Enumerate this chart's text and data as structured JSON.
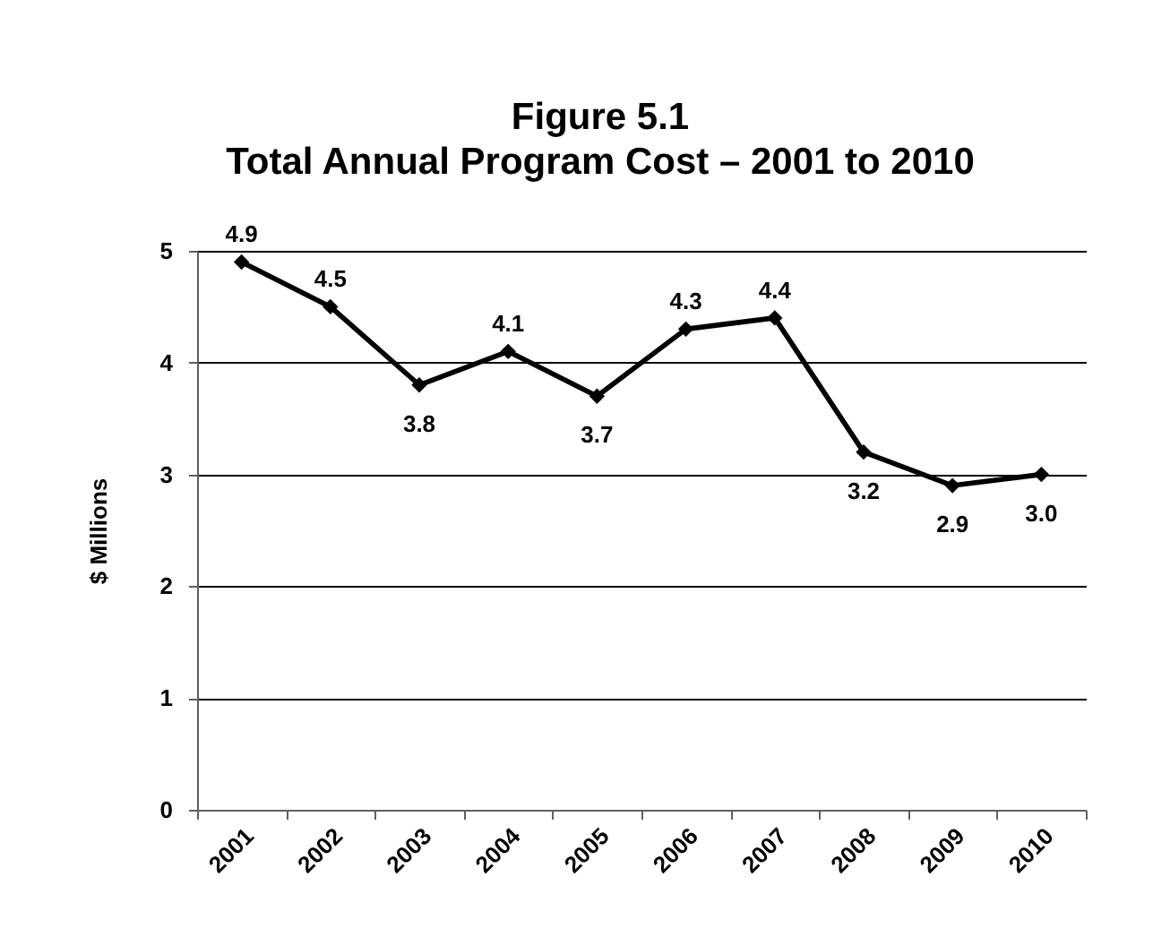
{
  "chart_data": {
    "type": "line",
    "title": "Figure 5.1",
    "subtitle": "Total Annual Program Cost – 2001 to 2010",
    "ylabel": "$ Millions",
    "categories": [
      "2001",
      "2002",
      "2003",
      "2004",
      "2005",
      "2006",
      "2007",
      "2008",
      "2009",
      "2010"
    ],
    "series": [
      {
        "color": "#000000",
        "values": [
          4.9,
          4.5,
          3.8,
          4.1,
          3.7,
          4.3,
          4.4,
          3.2,
          2.9,
          3.0
        ],
        "value_labels": [
          "4.9",
          "4.5",
          "3.8",
          "4.1",
          "3.7",
          "4.3",
          "4.4",
          "3.2",
          "2.9",
          "3.0"
        ]
      }
    ],
    "ylim": [
      0,
      5
    ],
    "yticks": [
      0,
      1,
      2,
      3,
      4,
      5
    ],
    "grid": "y",
    "marker": "diamond",
    "line_style": "solid"
  }
}
